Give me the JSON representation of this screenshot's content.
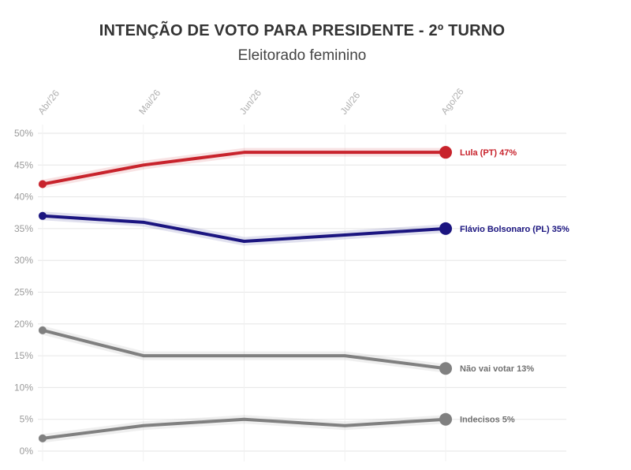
{
  "title": "INTENÇÃO DE VOTO PARA PRESIDENTE - 2º TURNO",
  "subtitle": "Eleitorado feminino",
  "chart_data": {
    "type": "line",
    "title": "INTENÇÃO DE VOTO PARA PRESIDENTE - 2º TURNO",
    "subtitle": "Eleitorado feminino",
    "xlabel": "",
    "ylabel": "",
    "x": [
      "Abr/26",
      "Mai/26",
      "Jun/26",
      "Jul/26",
      "Ago/26"
    ],
    "ylim": [
      0,
      50
    ],
    "yticks": [
      0,
      5,
      10,
      15,
      20,
      25,
      30,
      35,
      40,
      45,
      50
    ],
    "ytick_labels": [
      "0%",
      "5%",
      "10%",
      "15%",
      "20%",
      "25%",
      "30%",
      "35%",
      "40%",
      "45%",
      "50%"
    ],
    "grid": true,
    "x_axis_position": "top",
    "legend": "direct labels at line ends",
    "series": [
      {
        "name": "Lula (PT)",
        "values": [
          42,
          45,
          47,
          47,
          47
        ],
        "color": "#c8232c",
        "end_label": "Lula (PT) 47%"
      },
      {
        "name": "Flávio Bolsonaro (PL)",
        "values": [
          37,
          36,
          33,
          34,
          35
        ],
        "color": "#1b1580",
        "end_label": "Flávio Bolsonaro (PL) 35%"
      },
      {
        "name": "Não vai votar",
        "values": [
          19,
          15,
          15,
          15,
          13
        ],
        "color": "#808080",
        "end_label": "Não vai votar 13%"
      },
      {
        "name": "Indecisos",
        "values": [
          2,
          4,
          5,
          4,
          5
        ],
        "color": "#808080",
        "end_label": "Indecisos 5%"
      }
    ]
  }
}
